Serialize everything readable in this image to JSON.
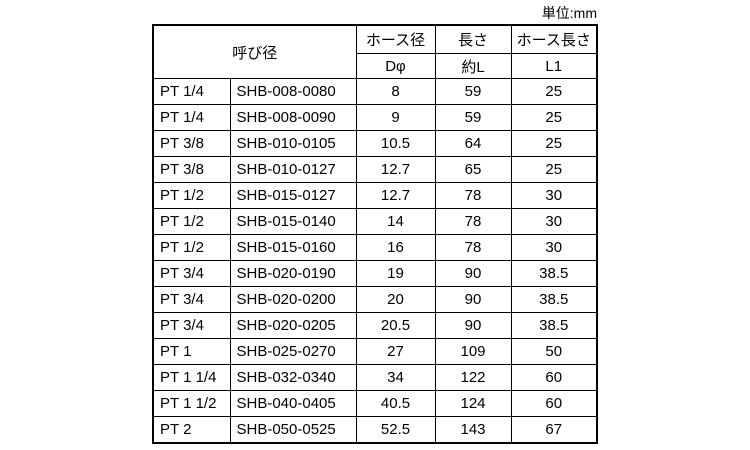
{
  "unit_label": "単位:mm",
  "header": {
    "nominal": "呼び径",
    "hose_dia": "ホース径",
    "length": "長さ",
    "hose_length": "ホース長さ",
    "hose_dia_sub": "Dφ",
    "length_sub": "約L",
    "hose_length_sub": "L1"
  },
  "rows": [
    [
      "PT 1/4",
      "SHB-008-0080",
      "8",
      "59",
      "25"
    ],
    [
      "PT 1/4",
      "SHB-008-0090",
      "9",
      "59",
      "25"
    ],
    [
      "PT 3/8",
      "SHB-010-0105",
      "10.5",
      "64",
      "25"
    ],
    [
      "PT 3/8",
      "SHB-010-0127",
      "12.7",
      "65",
      "25"
    ],
    [
      "PT 1/2",
      "SHB-015-0127",
      "12.7",
      "78",
      "30"
    ],
    [
      "PT 1/2",
      "SHB-015-0140",
      "14",
      "78",
      "30"
    ],
    [
      "PT 1/2",
      "SHB-015-0160",
      "16",
      "78",
      "30"
    ],
    [
      "PT 3/4",
      "SHB-020-0190",
      "19",
      "90",
      "38.5"
    ],
    [
      "PT 3/4",
      "SHB-020-0200",
      "20",
      "90",
      "38.5"
    ],
    [
      "PT 3/4",
      "SHB-020-0205",
      "20.5",
      "90",
      "38.5"
    ],
    [
      "PT 1",
      "SHB-025-0270",
      "27",
      "109",
      "50"
    ],
    [
      "PT 1 1/4",
      "SHB-032-0340",
      "34",
      "122",
      "60"
    ],
    [
      "PT 1 1/2",
      "SHB-040-0405",
      "40.5",
      "124",
      "60"
    ],
    [
      "PT 2",
      "SHB-050-0525",
      "52.5",
      "143",
      "67"
    ]
  ]
}
